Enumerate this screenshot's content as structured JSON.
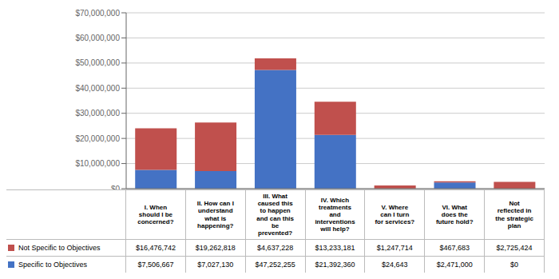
{
  "chart_data": {
    "type": "bar",
    "stacked": true,
    "grid": true,
    "categories": [
      "I. When\nshould I be\nconcerned?",
      "II. How can I\nunderstand\nwhat is\nhappening?",
      "III. What\ncaused this\nto happen\nand can this\nbe\nprevented?",
      "IV. Which\ntreatments\nand\ninterventions\nwill help?",
      "V. Where\ncan I turn\nfor services?",
      "VI. What\ndoes the\nfuture hold?",
      "Not\nreflected in\nthe strategic\nplan"
    ],
    "series": [
      {
        "name": "Specific to Objectives",
        "color": "#4472C4",
        "values": [
          7506667,
          7027130,
          47252255,
          21392360,
          24643,
          2471000,
          0
        ],
        "value_labels": [
          "$7,506,667",
          "$7,027,130",
          "$47,252,255",
          "$21,392,360",
          "$24,643",
          "$2,471,000",
          "$0"
        ]
      },
      {
        "name": "Not Specific to Objectives",
        "color": "#C0504D",
        "values": [
          16476742,
          19262818,
          4637228,
          13233181,
          1247714,
          467683,
          2725424
        ],
        "value_labels": [
          "$16,476,742",
          "$19,262,818",
          "$4,637,228",
          "$13,233,181",
          "$1,247,714",
          "$467,683",
          "$2,725,424"
        ]
      }
    ],
    "ylim": [
      0,
      70000000
    ],
    "yticks": [
      {
        "value": 0,
        "label": "$0"
      },
      {
        "value": 10000000,
        "label": "$10,000,000"
      },
      {
        "value": 20000000,
        "label": "$20,000,000"
      },
      {
        "value": 30000000,
        "label": "$30,000,000"
      },
      {
        "value": 40000000,
        "label": "$40,000,000"
      },
      {
        "value": 50000000,
        "label": "$50,000,000"
      },
      {
        "value": 60000000,
        "label": "$60,000,000"
      },
      {
        "value": 70000000,
        "label": "$70,000,000"
      }
    ]
  }
}
